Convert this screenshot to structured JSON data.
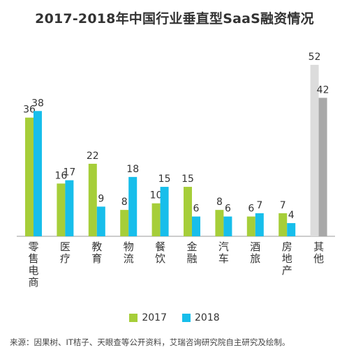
{
  "chart_data": {
    "type": "bar",
    "title": "2017-2018年中国行业垂直型SaaS融资情况",
    "categories": [
      "零售电商",
      "医疗",
      "教育",
      "物流",
      "餐饮",
      "金融",
      "汽车",
      "酒旅",
      "房地产",
      "其他"
    ],
    "series": [
      {
        "name": "2017",
        "values": [
          36,
          16,
          22,
          8,
          10,
          15,
          8,
          6,
          7,
          52
        ]
      },
      {
        "name": "2018",
        "values": [
          38,
          17,
          9,
          18,
          15,
          6,
          6,
          7,
          4,
          42
        ]
      }
    ],
    "ylim": [
      0,
      55
    ],
    "grid": false,
    "legend": "bottom-center",
    "colors": {
      "series_2017": "#A6CE39",
      "series_2018": "#17BEEB",
      "other_2017": "#DCDCDC",
      "other_2018": "#A8A8A8"
    }
  },
  "source": "来源：因果树、IT桔子、天眼查等公开资料，艾瑞咨询研究院自主研究及绘制。"
}
